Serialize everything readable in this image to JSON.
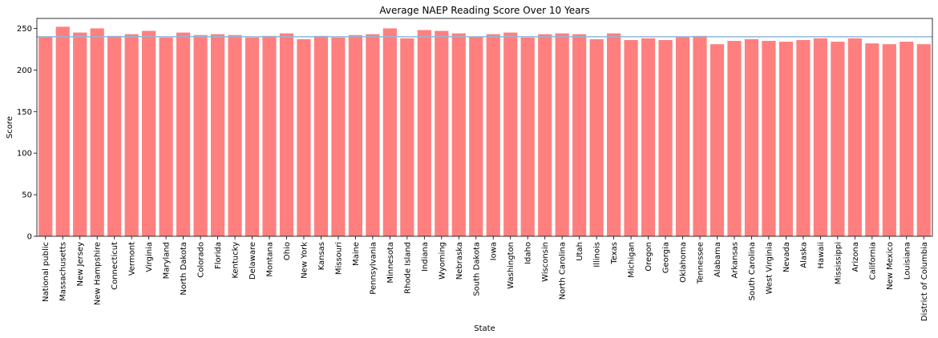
{
  "chart_data": {
    "type": "bar",
    "title": "Average NAEP Reading Score Over 10 Years",
    "xlabel": "State",
    "ylabel": "Score",
    "ylim": [
      0,
      262
    ],
    "yticks": [
      0,
      50,
      100,
      150,
      200,
      250
    ],
    "grid": false,
    "bar_color": "#ff7f7f",
    "reference_line": {
      "value": 240,
      "color": "#8fb8d8"
    },
    "categories": [
      "National public",
      "Massachusetts",
      "New Jersey",
      "New Hampshire",
      "Connecticut",
      "Vermont",
      "Virginia",
      "Maryland",
      "North Dakota",
      "Colorado",
      "Florida",
      "Kentucky",
      "Delaware",
      "Montana",
      "Ohio",
      "New York",
      "Kansas",
      "Missouri",
      "Maine",
      "Pennsylvania",
      "Minnesota",
      "Rhode Island",
      "Indiana",
      "Wyoming",
      "Nebraska",
      "South Dakota",
      "Iowa",
      "Washington",
      "Idaho",
      "Wisconsin",
      "North Carolina",
      "Utah",
      "Illinois",
      "Texas",
      "Michigan",
      "Oregon",
      "Georgia",
      "Oklahoma",
      "Tennessee",
      "Alabama",
      "Arkansas",
      "South Carolina",
      "West Virginia",
      "Nevada",
      "Alaska",
      "Hawaii",
      "Mississippi",
      "Arizona",
      "California",
      "New Mexico",
      "Louisiana",
      "District of Columbia"
    ],
    "values": [
      240,
      252,
      245,
      250,
      241,
      243,
      247,
      239,
      245,
      242,
      243,
      242,
      239,
      241,
      244,
      237,
      241,
      239,
      242,
      243,
      250,
      238,
      248,
      247,
      244,
      240,
      243,
      245,
      239,
      243,
      244,
      243,
      237,
      244,
      236,
      238,
      236,
      240,
      241,
      231,
      235,
      237,
      235,
      234,
      236,
      238,
      234,
      238,
      232,
      231,
      234,
      231
    ]
  }
}
